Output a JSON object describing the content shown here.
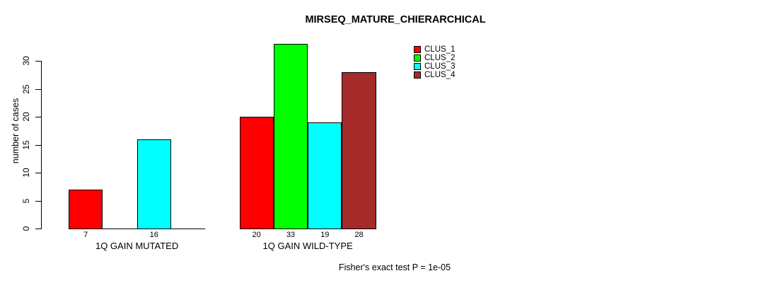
{
  "chart_data": {
    "type": "bar",
    "title": "MIRSEQ_MATURE_CHIERARCHICAL",
    "ylabel": "number of cases",
    "xlabel": "",
    "ylim": [
      0,
      33
    ],
    "y_ticks": [
      0,
      5,
      10,
      15,
      20,
      25,
      30
    ],
    "grid": false,
    "legend_position": "top-right",
    "categories": [
      "1Q GAIN MUTATED",
      "1Q GAIN WILD-TYPE"
    ],
    "series": [
      {
        "name": "CLUS_1",
        "color": "#FF0000",
        "values": [
          7,
          20
        ]
      },
      {
        "name": "CLUS_2",
        "color": "#00FF00",
        "values": [
          0,
          33
        ]
      },
      {
        "name": "CLUS_3",
        "color": "#00FFFF",
        "values": [
          16,
          19
        ]
      },
      {
        "name": "CLUS_4",
        "color": "#A52A2A",
        "values": [
          0,
          28
        ]
      }
    ],
    "visible_bar_labels": [
      [
        7,
        16
      ],
      [
        20,
        33,
        19,
        28
      ]
    ],
    "footnote": "Fisher's exact test P = 1e-05",
    "colors": {
      "axis": "#000000",
      "background": "#FFFFFF"
    }
  }
}
